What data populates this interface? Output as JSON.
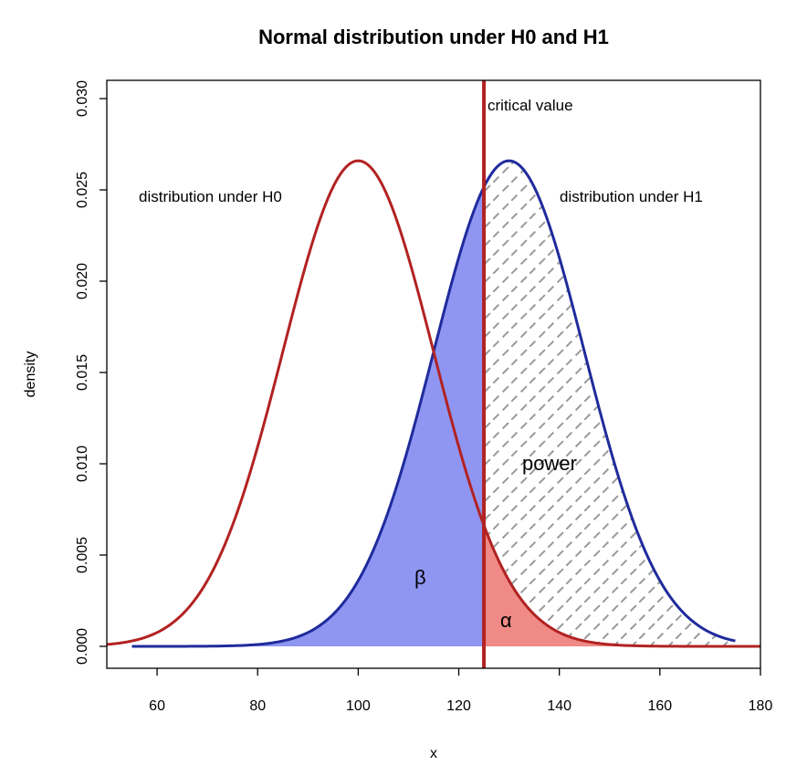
{
  "chart_data": {
    "type": "area",
    "title": "Normal distribution under H0 and H1",
    "xlabel": "x",
    "ylabel": "density",
    "xlim": [
      50,
      180
    ],
    "ylim": [
      -0.0012,
      0.031
    ],
    "x_ticks": [
      "60",
      "80",
      "100",
      "120",
      "140",
      "160",
      "180"
    ],
    "y_ticks": [
      "0.000",
      "0.005",
      "0.010",
      "0.015",
      "0.020",
      "0.025",
      "0.030"
    ],
    "series": [
      {
        "mean": 100,
        "sd": 15,
        "x_range": [
          50,
          180
        ],
        "color": "#b22222"
      },
      {
        "mean": 130,
        "sd": 15,
        "x_range": [
          55,
          175
        ],
        "color": "#1f2b9c"
      }
    ],
    "critical_value": 125,
    "region_colors": {
      "beta": "#8f96f2",
      "alpha": "#f08a86",
      "power_hatch": "#9a9a9a",
      "critical_line": "#b22222"
    },
    "annotations": {
      "h0": "distribution under H0",
      "h1": "distribution under H1",
      "critical": "critical value",
      "power": "power",
      "beta": "β",
      "alpha": "α"
    },
    "grid": false
  }
}
